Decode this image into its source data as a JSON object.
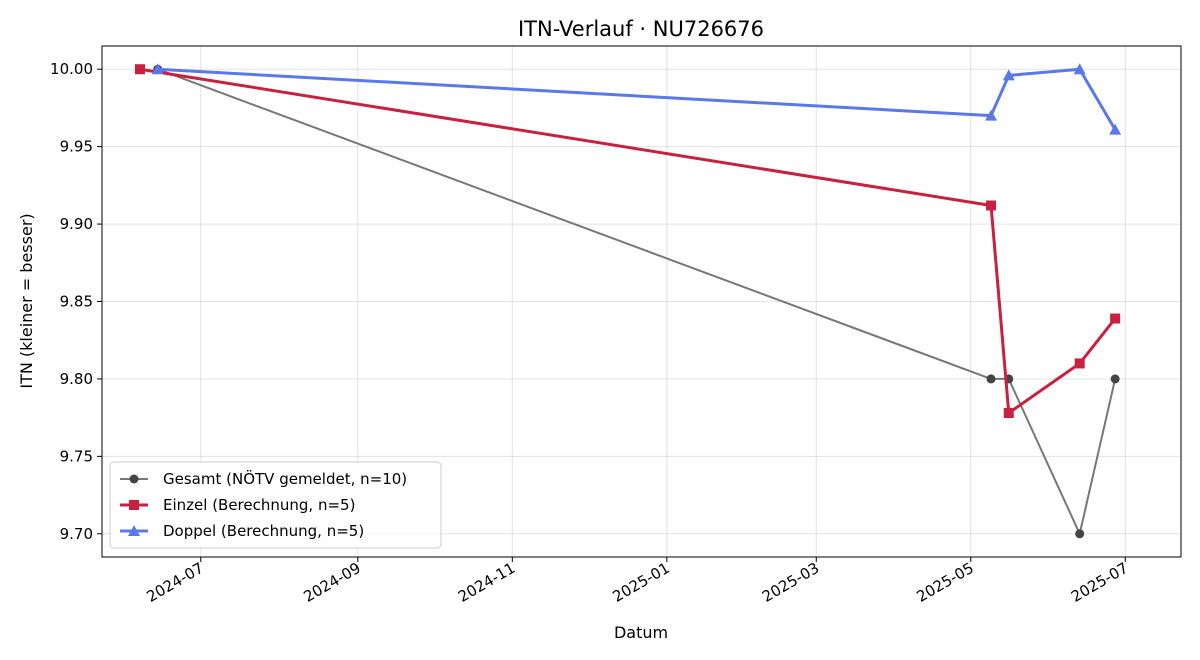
{
  "chart_data": {
    "type": "line",
    "title": "ITN-Verlauf · NU726676",
    "xlabel": "Datum",
    "ylabel": "ITN  (kleiner = besser)",
    "x_type": "date",
    "xlim": [
      "2024-05-23",
      "2025-07-23"
    ],
    "ylim": [
      9.685,
      10.015
    ],
    "x_ticks": [
      {
        "date": "2024-07-01",
        "label": "2024-07"
      },
      {
        "date": "2024-09-01",
        "label": "2024-09"
      },
      {
        "date": "2024-11-01",
        "label": "2024-11"
      },
      {
        "date": "2025-01-01",
        "label": "2025-01"
      },
      {
        "date": "2025-03-01",
        "label": "2025-03"
      },
      {
        "date": "2025-05-01",
        "label": "2025-05"
      },
      {
        "date": "2025-07-01",
        "label": "2025-07"
      }
    ],
    "y_ticks": [
      9.7,
      9.75,
      9.8,
      9.85,
      9.9,
      9.95,
      10.0
    ],
    "grid": true,
    "legend_position": "lower-left",
    "series": [
      {
        "name": "Gesamt (NÖTV gemeldet, n=10)",
        "color": "#777777",
        "marker": "circle",
        "points": [
          {
            "x": "2024-06-14",
            "y": 10.0
          },
          {
            "x": "2025-05-09",
            "y": 9.8
          },
          {
            "x": "2025-05-16",
            "y": 9.8
          },
          {
            "x": "2025-06-13",
            "y": 9.7
          },
          {
            "x": "2025-06-27",
            "y": 9.8
          }
        ]
      },
      {
        "name": "Einzel (Berechnung, n=5)",
        "color": "#c8203f",
        "marker": "square",
        "points": [
          {
            "x": "2024-06-07",
            "y": 10.0
          },
          {
            "x": "2025-05-09",
            "y": 9.912
          },
          {
            "x": "2025-05-16",
            "y": 9.778
          },
          {
            "x": "2025-06-13",
            "y": 9.81
          },
          {
            "x": "2025-06-27",
            "y": 9.839
          }
        ]
      },
      {
        "name": "Doppel (Berechnung, n=5)",
        "color": "#5a78ea",
        "marker": "triangle",
        "points": [
          {
            "x": "2024-06-14",
            "y": 10.0
          },
          {
            "x": "2025-05-09",
            "y": 9.97
          },
          {
            "x": "2025-05-16",
            "y": 9.996
          },
          {
            "x": "2025-06-13",
            "y": 10.0
          },
          {
            "x": "2025-06-27",
            "y": 9.961
          }
        ]
      }
    ]
  }
}
